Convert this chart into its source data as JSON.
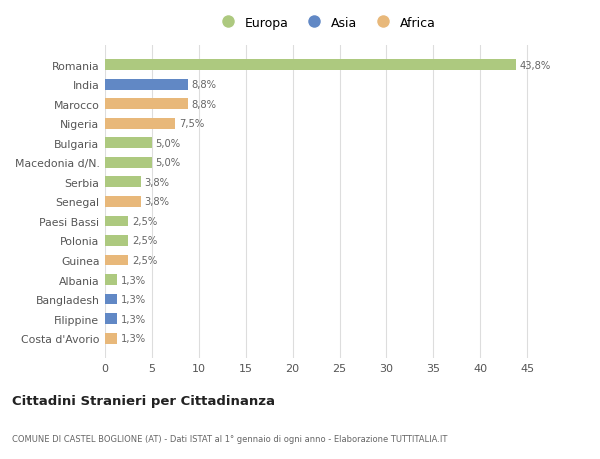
{
  "countries": [
    "Romania",
    "India",
    "Marocco",
    "Nigeria",
    "Bulgaria",
    "Macedonia d/N.",
    "Serbia",
    "Senegal",
    "Paesi Bassi",
    "Polonia",
    "Guinea",
    "Albania",
    "Bangladesh",
    "Filippine",
    "Costa d'Avorio"
  ],
  "values": [
    43.8,
    8.8,
    8.8,
    7.5,
    5.0,
    5.0,
    3.8,
    3.8,
    2.5,
    2.5,
    2.5,
    1.3,
    1.3,
    1.3,
    1.3
  ],
  "labels": [
    "43,8%",
    "8,8%",
    "8,8%",
    "7,5%",
    "5,0%",
    "5,0%",
    "3,8%",
    "3,8%",
    "2,5%",
    "2,5%",
    "2,5%",
    "1,3%",
    "1,3%",
    "1,3%",
    "1,3%"
  ],
  "continents": [
    "Europa",
    "Asia",
    "Africa",
    "Africa",
    "Europa",
    "Europa",
    "Europa",
    "Africa",
    "Europa",
    "Europa",
    "Africa",
    "Europa",
    "Asia",
    "Asia",
    "Africa"
  ],
  "colors": {
    "Europa": "#adc97f",
    "Asia": "#6188c5",
    "Africa": "#e8b87a"
  },
  "title": "Cittadini Stranieri per Cittadinanza",
  "subtitle": "COMUNE DI CASTEL BOGLIONE (AT) - Dati ISTAT al 1° gennaio di ogni anno - Elaborazione TUTTITALIA.IT",
  "xlim": [
    0,
    47
  ],
  "xticks": [
    0,
    5,
    10,
    15,
    20,
    25,
    30,
    35,
    40,
    45
  ],
  "plot_bg": "#ffffff",
  "fig_bg": "#ffffff",
  "grid_color": "#dddddd",
  "text_color": "#555555",
  "label_color": "#666666"
}
